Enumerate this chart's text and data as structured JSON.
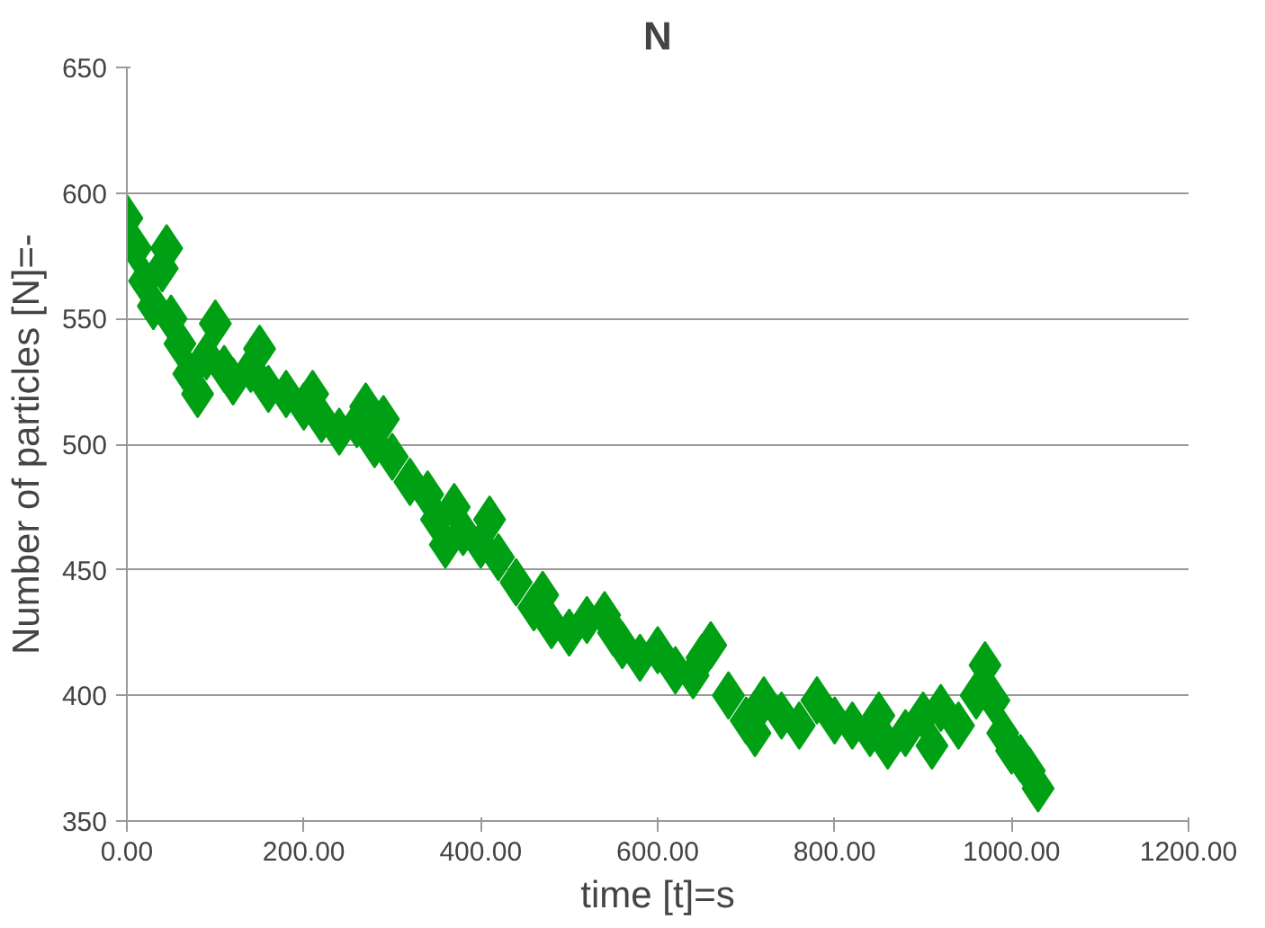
{
  "chart_data": {
    "type": "scatter",
    "title": "N",
    "xlabel": "time [t]=s",
    "ylabel": "Number of particles [N]=-",
    "x": [
      0,
      10,
      20,
      30,
      40,
      45,
      50,
      60,
      70,
      80,
      90,
      100,
      110,
      120,
      140,
      150,
      160,
      180,
      200,
      210,
      220,
      240,
      260,
      270,
      280,
      290,
      300,
      320,
      340,
      350,
      360,
      370,
      380,
      400,
      410,
      420,
      440,
      460,
      470,
      480,
      500,
      520,
      540,
      550,
      560,
      580,
      600,
      620,
      640,
      650,
      660,
      680,
      700,
      710,
      720,
      740,
      760,
      780,
      800,
      820,
      840,
      850,
      860,
      880,
      900,
      910,
      920,
      940,
      960,
      970,
      980,
      990,
      1000,
      1010,
      1020,
      1030
    ],
    "series": [
      {
        "color": "#00a014",
        "values": [
          590,
          578,
          565,
          555,
          570,
          578,
          550,
          540,
          528,
          520,
          535,
          548,
          530,
          525,
          530,
          538,
          522,
          520,
          515,
          520,
          510,
          505,
          508,
          515,
          500,
          510,
          495,
          485,
          480,
          470,
          460,
          475,
          465,
          460,
          470,
          455,
          445,
          435,
          440,
          428,
          425,
          430,
          432,
          425,
          420,
          415,
          418,
          410,
          408,
          415,
          420,
          400,
          390,
          385,
          398,
          392,
          388,
          398,
          390,
          388,
          385,
          392,
          380,
          385,
          392,
          380,
          395,
          388,
          400,
          412,
          398,
          385,
          378,
          375,
          370,
          363
        ]
      }
    ],
    "xlim": [
      0,
      1200
    ],
    "ylim": [
      350,
      650
    ],
    "xticks": [
      {
        "value": 0,
        "label": "0.00"
      },
      {
        "value": 200,
        "label": "200.00"
      },
      {
        "value": 400,
        "label": "400.00"
      },
      {
        "value": 600,
        "label": "600.00"
      },
      {
        "value": 800,
        "label": "800.00"
      },
      {
        "value": 1000,
        "label": "1000.00"
      },
      {
        "value": 1200,
        "label": "1200.00"
      }
    ],
    "yticks": [
      350,
      400,
      450,
      500,
      550,
      600,
      650
    ],
    "grid": "y",
    "marker": "diamond"
  }
}
